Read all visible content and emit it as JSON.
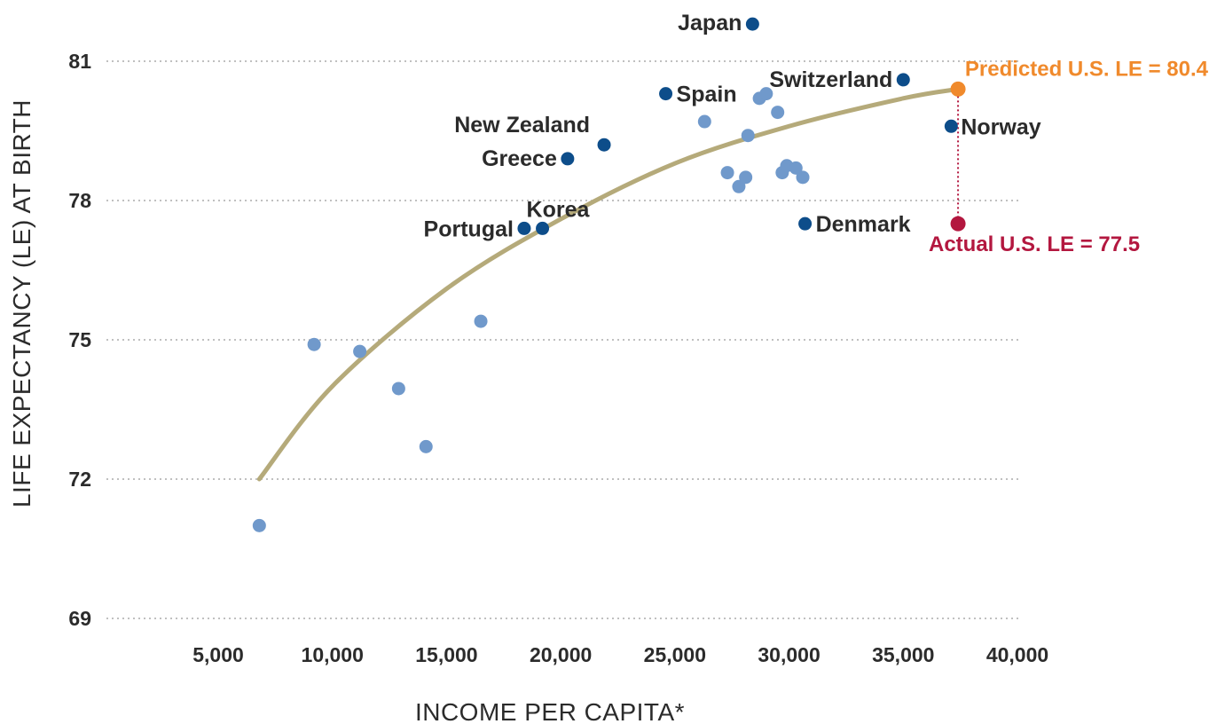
{
  "chart_data": {
    "type": "scatter",
    "title": "",
    "xlabel": "INCOME PER CAPITA*",
    "ylabel": "LIFE EXPECTANCY (LE) AT BIRTH",
    "xlim": [
      2500,
      40000
    ],
    "ylim": [
      69,
      82
    ],
    "x_ticks": [
      "5,000",
      "10,000",
      "15,000",
      "20,000",
      "25,000",
      "30,000",
      "35,000",
      "40,000"
    ],
    "x_tick_values": [
      5000,
      10000,
      15000,
      20000,
      25000,
      30000,
      35000,
      40000
    ],
    "y_ticks": [
      "81",
      "78",
      "75",
      "72",
      "69"
    ],
    "y_tick_values": [
      81,
      78,
      75,
      72,
      69
    ],
    "grid": "horizontal dotted",
    "colors": {
      "labeled_point": "#0d4d8a",
      "unlabeled_point": "#7099cb",
      "trend": "#b5aa7a",
      "predicted": "#f08a2c",
      "actual": "#b3173f"
    },
    "labeled_points": [
      {
        "label": "Japan",
        "x": 28400,
        "y": 81.8
      },
      {
        "label": "Switzerland",
        "x": 35000,
        "y": 80.6
      },
      {
        "label": "Spain",
        "x": 24600,
        "y": 80.3
      },
      {
        "label": "New Zealand",
        "x": 21900,
        "y": 79.2
      },
      {
        "label": "Greece",
        "x": 20300,
        "y": 78.9
      },
      {
        "label": "Norway",
        "x": 37100,
        "y": 79.6
      },
      {
        "label": "Korea",
        "x": 19200,
        "y": 77.4
      },
      {
        "label": "Portugal",
        "x": 18400,
        "y": 77.4
      },
      {
        "label": "Denmark",
        "x": 30700,
        "y": 77.5
      }
    ],
    "unlabeled_points": [
      {
        "x": 6800,
        "y": 71.0
      },
      {
        "x": 9200,
        "y": 74.9
      },
      {
        "x": 11200,
        "y": 74.75
      },
      {
        "x": 12900,
        "y": 73.95
      },
      {
        "x": 14100,
        "y": 72.7
      },
      {
        "x": 16500,
        "y": 75.4
      },
      {
        "x": 26300,
        "y": 79.7
      },
      {
        "x": 27300,
        "y": 78.6
      },
      {
        "x": 27800,
        "y": 78.3
      },
      {
        "x": 28100,
        "y": 78.5
      },
      {
        "x": 28200,
        "y": 79.4
      },
      {
        "x": 28700,
        "y": 80.2
      },
      {
        "x": 29000,
        "y": 80.3
      },
      {
        "x": 29500,
        "y": 79.9
      },
      {
        "x": 29700,
        "y": 78.6
      },
      {
        "x": 29900,
        "y": 78.75
      },
      {
        "x": 30300,
        "y": 78.7
      },
      {
        "x": 30600,
        "y": 78.5
      }
    ],
    "trend_line": {
      "x": [
        6800,
        10000,
        15000,
        20000,
        25000,
        30000,
        35000,
        37400
      ],
      "y": [
        72.0,
        74.0,
        76.1,
        77.6,
        78.8,
        79.6,
        80.2,
        80.4
      ]
    },
    "annotations": {
      "predicted": {
        "text": "Predicted U.S. LE = 80.4",
        "x": 37400,
        "y": 80.4
      },
      "actual": {
        "text": "Actual U.S. LE = 77.5",
        "x": 37400,
        "y": 77.5
      }
    }
  }
}
